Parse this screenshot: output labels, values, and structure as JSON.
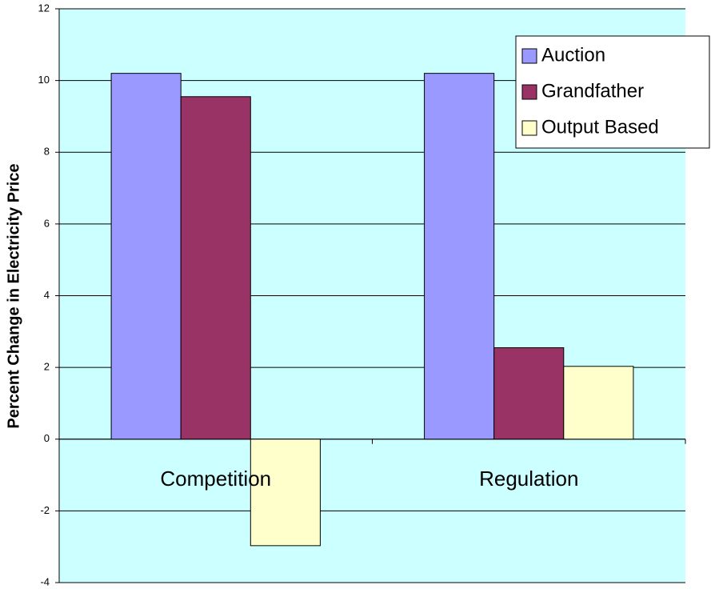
{
  "chart_data": {
    "type": "bar",
    "y_label": "Percent Change in Electricity Price",
    "categories": [
      "Competition",
      "Regulation"
    ],
    "series": [
      {
        "name": "Auction",
        "color": "#9999ff",
        "values": [
          10.2,
          10.2
        ]
      },
      {
        "name": "Grandfather",
        "color": "#993366",
        "values": [
          9.55,
          2.55
        ]
      },
      {
        "name": "Output Based",
        "color": "#ffffcc",
        "values": [
          -2.97,
          2.03
        ]
      }
    ],
    "ylim": [
      -4,
      12
    ],
    "yticks": [
      -4,
      -2,
      0,
      2,
      4,
      6,
      8,
      10,
      12
    ],
    "grid": true,
    "legend": "top-right",
    "background": "#ccffff"
  }
}
